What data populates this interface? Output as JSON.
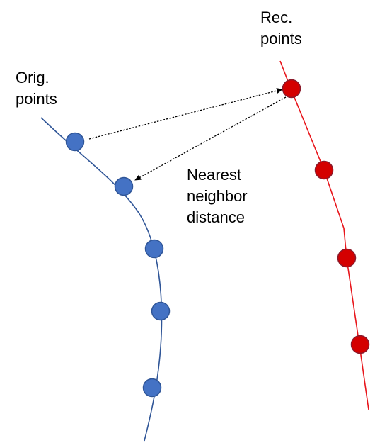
{
  "labels": {
    "original_points": [
      "Orig.",
      "points"
    ],
    "reconstructed_points": [
      "Rec.",
      "points"
    ],
    "nearest_neighbor": [
      "Nearest",
      "neighbor",
      "distance"
    ]
  },
  "colors": {
    "original_curve": "#2F5597",
    "original_point_fill": "#4472C4",
    "original_point_stroke": "#2F5597",
    "reconstructed_curve": "#E8151B",
    "reconstructed_point_fill": "#D40000",
    "reconstructed_point_stroke": "#8B1A2B",
    "arrow": "#000000"
  },
  "diagram": {
    "original_point_count": 5,
    "reconstructed_point_count": 4,
    "arrow_style": "dotted",
    "arrow_count": 2
  }
}
